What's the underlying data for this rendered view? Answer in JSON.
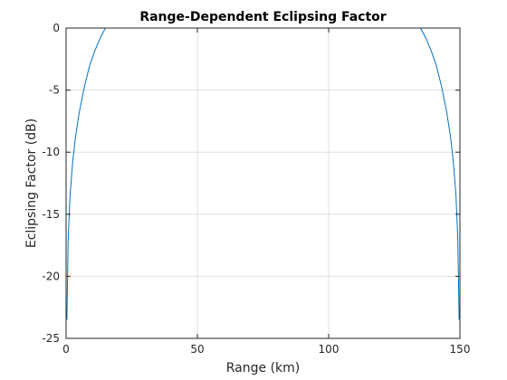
{
  "chart_data": {
    "type": "line",
    "title": "Range-Dependent Eclipsing Factor",
    "xlabel": "Range (km)",
    "ylabel": "Eclipsing Factor (dB)",
    "xlim": [
      0,
      150
    ],
    "ylim": [
      -25,
      0
    ],
    "xticks": [
      0,
      50,
      100,
      150
    ],
    "yticks": [
      0,
      -5,
      -10,
      -15,
      -20,
      -25
    ],
    "grid": true,
    "series": [
      {
        "color": "#0072BD",
        "x": [
          0.3,
          0.8,
          1.5,
          2.5,
          3.5,
          5,
          7,
          9,
          11,
          13,
          15,
          135,
          137,
          139,
          141,
          143,
          145,
          146.5,
          147.5,
          148.5,
          149.2,
          149.7
        ],
        "y": [
          -23.5,
          -17.0,
          -13.5,
          -10.8,
          -8.9,
          -6.8,
          -4.7,
          -3.0,
          -1.8,
          -0.8,
          0,
          0,
          -0.8,
          -1.8,
          -3.0,
          -4.7,
          -6.8,
          -8.9,
          -10.8,
          -13.5,
          -17.0,
          -23.5
        ]
      }
    ]
  }
}
